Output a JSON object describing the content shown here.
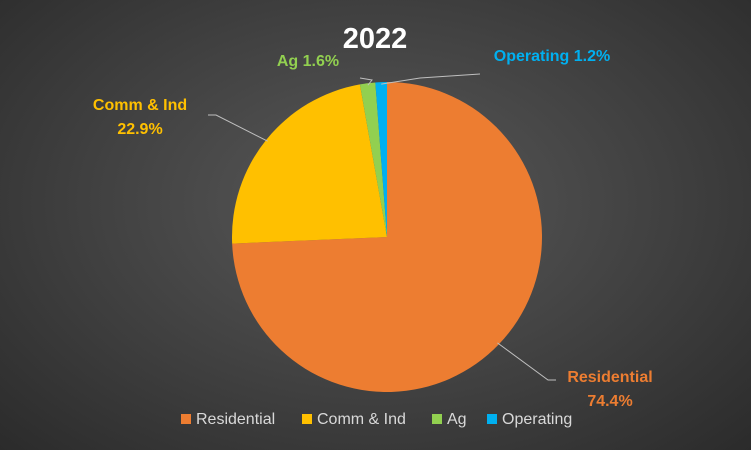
{
  "chart_data": {
    "type": "pie",
    "title": "2022",
    "categories": [
      "Residential",
      "Comm & Ind",
      "Ag",
      "Operating"
    ],
    "values": [
      74.4,
      22.9,
      1.6,
      1.2
    ],
    "unit": "%",
    "colors": [
      "#ED7D31",
      "#FFC000",
      "#92D050",
      "#00B0F0"
    ],
    "data_labels": [
      "74.4%",
      "22.9%",
      "1.6%",
      "1.2%"
    ],
    "legend": {
      "position": "bottom",
      "entries": [
        "Residential",
        "Comm & Ind",
        "Ag",
        "Operating"
      ]
    }
  }
}
